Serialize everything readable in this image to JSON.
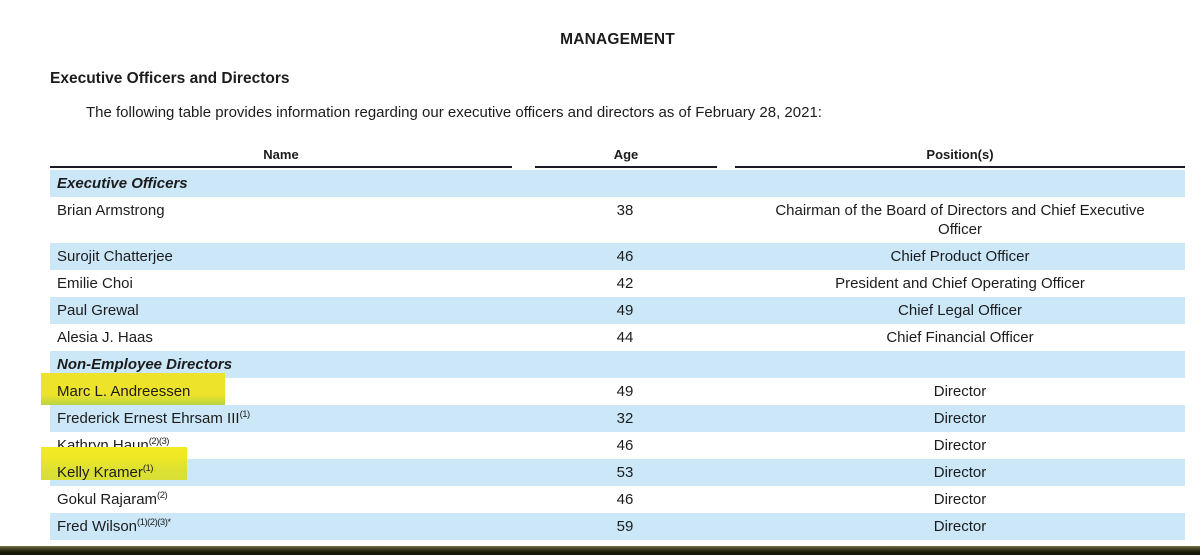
{
  "page": {
    "title": "MANAGEMENT",
    "section_heading": "Executive Officers and Directors",
    "intro": "The following table provides information regarding our executive officers and directors as of February 28, 2021:"
  },
  "table": {
    "columns": [
      "Name",
      "Age",
      "Position(s)"
    ],
    "rows": [
      {
        "kind": "section",
        "name": "Executive Officers",
        "sup": "",
        "age": "",
        "position": "",
        "shaded": true,
        "highlighted": false
      },
      {
        "kind": "person",
        "name": "Brian Armstrong",
        "sup": "",
        "age": "38",
        "position": "Chairman of the Board of Directors and Chief Executive Officer",
        "shaded": false,
        "highlighted": false
      },
      {
        "kind": "person",
        "name": "Surojit Chatterjee",
        "sup": "",
        "age": "46",
        "position": "Chief Product Officer",
        "shaded": true,
        "highlighted": false
      },
      {
        "kind": "person",
        "name": "Emilie Choi",
        "sup": "",
        "age": "42",
        "position": "President and Chief Operating Officer",
        "shaded": false,
        "highlighted": false
      },
      {
        "kind": "person",
        "name": "Paul Grewal",
        "sup": "",
        "age": "49",
        "position": "Chief Legal Officer",
        "shaded": true,
        "highlighted": false
      },
      {
        "kind": "person",
        "name": "Alesia J. Haas",
        "sup": "",
        "age": "44",
        "position": "Chief Financial Officer",
        "shaded": false,
        "highlighted": false
      },
      {
        "kind": "section",
        "name": "Non-Employee Directors",
        "sup": "",
        "age": "",
        "position": "",
        "shaded": true,
        "highlighted": false
      },
      {
        "kind": "person",
        "name": "Marc L. Andreessen",
        "sup": "",
        "age": "49",
        "position": "Director",
        "shaded": false,
        "highlighted": true
      },
      {
        "kind": "person",
        "name": "Frederick Ernest Ehrsam III",
        "sup": "(1)",
        "age": "32",
        "position": "Director",
        "shaded": true,
        "highlighted": false
      },
      {
        "kind": "person",
        "name": "Kathryn Haun",
        "sup": "(2)(3)",
        "age": "46",
        "position": "Director",
        "shaded": false,
        "highlighted": false
      },
      {
        "kind": "person",
        "name": "Kelly Kramer",
        "sup": "(1)",
        "age": "53",
        "position": "Director",
        "shaded": true,
        "highlighted": true
      },
      {
        "kind": "person",
        "name": "Gokul Rajaram",
        "sup": "(2)",
        "age": "46",
        "position": "Director",
        "shaded": false,
        "highlighted": false
      },
      {
        "kind": "person",
        "name": "Fred Wilson",
        "sup": "(1)(2)(3)*",
        "age": "59",
        "position": "Director",
        "shaded": true,
        "highlighted": false
      }
    ]
  },
  "colors": {
    "row_shaded_blue": "#cbe7f8",
    "highlight_yellow": "#ece42b",
    "highlight_green_edge": "#b9d347",
    "header_rule": "#1b1b26",
    "bottom_bar_dark": "#191907",
    "text": "#1c1c1c"
  }
}
